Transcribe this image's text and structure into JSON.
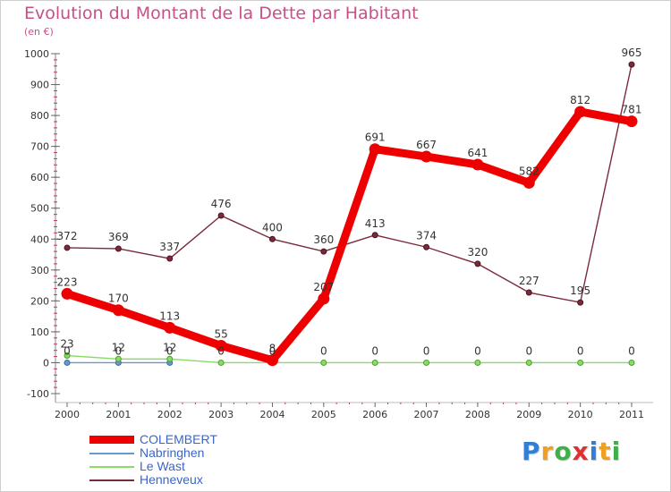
{
  "chart_data": {
    "type": "line",
    "title": "Evolution du Montant de la Dette par Habitant",
    "subtitle": "(en €)",
    "xlabel": "",
    "ylabel": "",
    "x": [
      "2000",
      "2001",
      "2002",
      "2003",
      "2004",
      "2005",
      "2006",
      "2007",
      "2008",
      "2009",
      "2010",
      "2011"
    ],
    "ylim": [
      -100,
      1000
    ],
    "yticks": [
      -100,
      0,
      100,
      200,
      300,
      400,
      500,
      600,
      700,
      800,
      900,
      1000
    ],
    "ytick_labels": [
      "-100",
      "0",
      "100",
      "200",
      "300",
      "400",
      "500",
      "600",
      "700",
      "800",
      "900",
      "1000"
    ],
    "grid": false,
    "legend_position": "bottom-left",
    "series": [
      {
        "name": "COLEMBERT",
        "color": "#ee0000",
        "values": [
          223,
          170,
          113,
          55,
          8,
          207,
          691,
          667,
          641,
          582,
          812,
          781
        ],
        "labels": [
          "223",
          "170",
          "113",
          "55",
          "8",
          "207",
          "691",
          "667",
          "641",
          "582",
          "812",
          "781"
        ],
        "emphasis": "thick"
      },
      {
        "name": "Nabringhen",
        "color": "#6699cc",
        "values": [
          0,
          0,
          0,
          null,
          null,
          null,
          null,
          null,
          null,
          null,
          null,
          null
        ],
        "labels": [
          "0",
          "0",
          "0",
          "",
          "",
          "",
          "",
          "",
          "",
          "",
          "",
          ""
        ],
        "emphasis": "thin"
      },
      {
        "name": "Le Wast",
        "color": "#88dd66",
        "values": [
          23,
          12,
          12,
          0,
          0,
          0,
          0,
          0,
          0,
          0,
          0,
          0
        ],
        "labels": [
          "23",
          "12",
          "12",
          "0",
          "0",
          "0",
          "0",
          "0",
          "0",
          "0",
          "0",
          "0"
        ],
        "emphasis": "thin"
      },
      {
        "name": "Henneveux",
        "color": "#7a2a3a",
        "values": [
          372,
          369,
          337,
          476,
          400,
          360,
          413,
          374,
          320,
          227,
          195,
          965
        ],
        "labels": [
          "372",
          "369",
          "337",
          "476",
          "400",
          "360",
          "413",
          "374",
          "320",
          "227",
          "195",
          "965"
        ],
        "emphasis": "thin"
      }
    ]
  },
  "brand": {
    "letters": [
      "P",
      "r",
      "o",
      "x",
      "i",
      "t",
      "i"
    ],
    "colors": [
      "#2f7fd8",
      "#f0a020",
      "#3db04a",
      "#e03030",
      "#2f7fd8",
      "#f0a020",
      "#3db04a"
    ]
  }
}
